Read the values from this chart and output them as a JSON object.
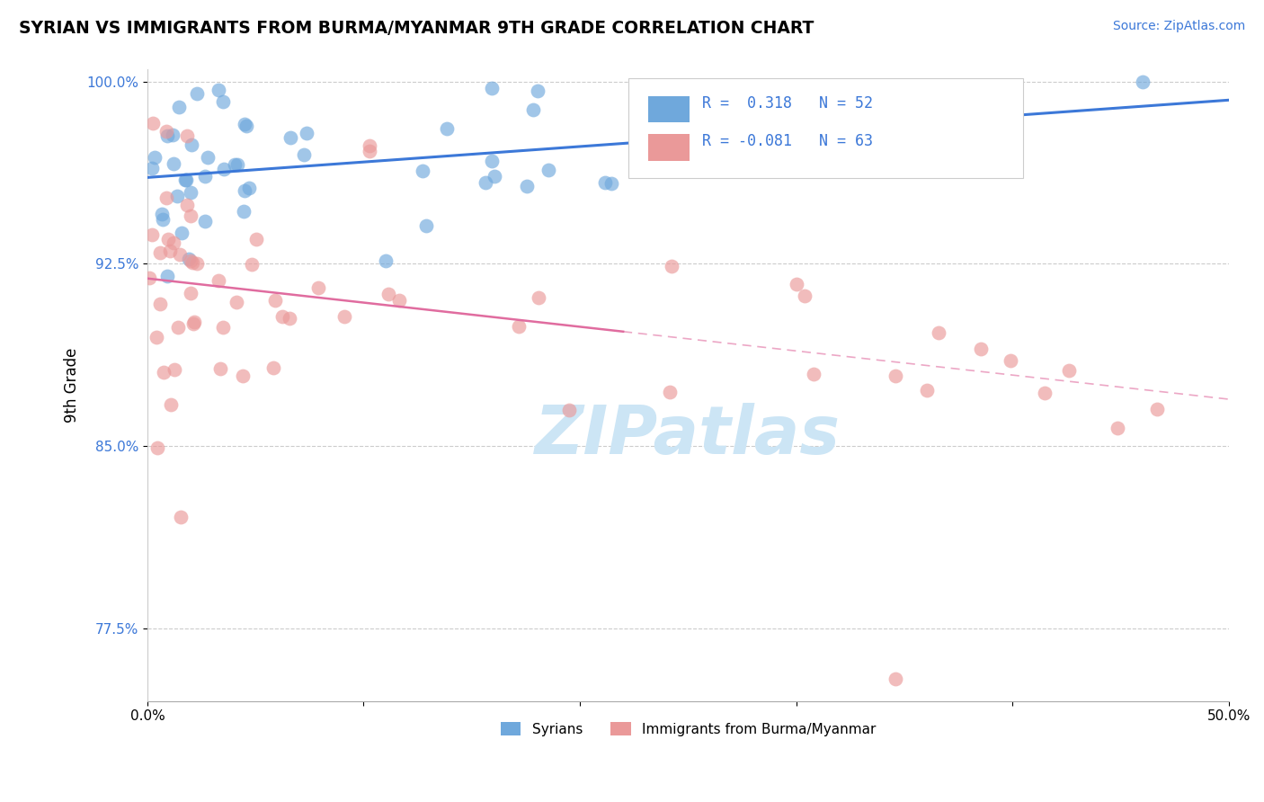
{
  "title": "SYRIAN VS IMMIGRANTS FROM BURMA/MYANMAR 9TH GRADE CORRELATION CHART",
  "source": "Source: ZipAtlas.com",
  "ylabel": "9th Grade",
  "xlim": [
    0.0,
    0.5
  ],
  "ylim": [
    0.745,
    1.005
  ],
  "yticks": [
    0.775,
    0.85,
    0.925,
    1.0
  ],
  "ytick_labels": [
    "77.5%",
    "85.0%",
    "92.5%",
    "100.0%"
  ],
  "xticks": [
    0.0,
    0.1,
    0.2,
    0.3,
    0.4,
    0.5
  ],
  "xtick_labels": [
    "0.0%",
    "",
    "",
    "",
    "",
    "50.0%"
  ],
  "blue_color": "#6fa8dc",
  "pink_color": "#ea9999",
  "blue_line_color": "#3c78d8",
  "pink_line_color": "#e06c9f",
  "watermark": "ZIPatlas",
  "watermark_color": "#cce5f5",
  "background_color": "#ffffff",
  "n_blue": 52,
  "n_pink": 63
}
